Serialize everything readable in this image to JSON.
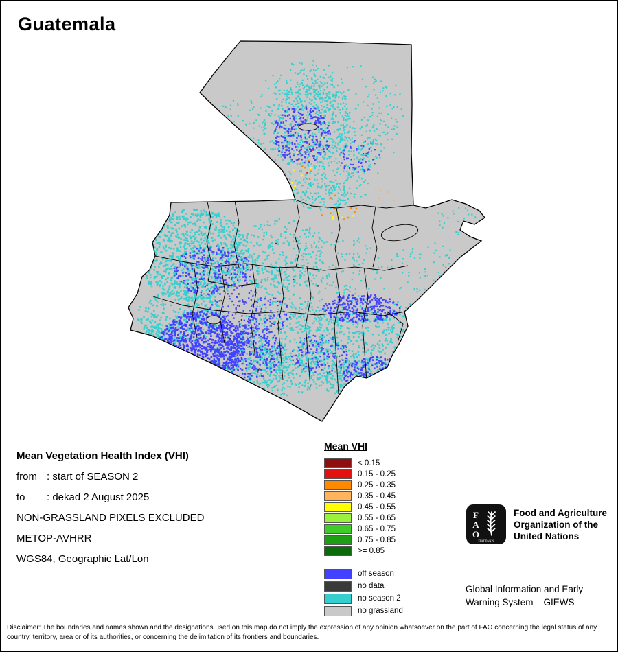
{
  "title": "Guatemala",
  "info": {
    "heading": "Mean Vegetation Health Index (VHI)",
    "rows": [
      {
        "label": "from",
        "value": ": start of SEASON 2"
      },
      {
        "label": "to",
        "value": ": dekad 2 August 2025"
      }
    ],
    "lines": [
      "NON-GRASSLAND PIXELS EXCLUDED",
      "METOP-AVHRR",
      "WGS84, Geographic Lat/Lon"
    ]
  },
  "legend": {
    "title": "Mean VHI",
    "vhi_classes": [
      {
        "label": "< 0.15",
        "color": "#8f0e0e"
      },
      {
        "label": "0.15 - 0.25",
        "color": "#e31010"
      },
      {
        "label": "0.25 - 0.35",
        "color": "#ff8a00"
      },
      {
        "label": "0.35 - 0.45",
        "color": "#ffb35c"
      },
      {
        "label": "0.45 - 0.55",
        "color": "#ffff00"
      },
      {
        "label": "0.55 - 0.65",
        "color": "#9bf23c"
      },
      {
        "label": "0.65 - 0.75",
        "color": "#3ecc28"
      },
      {
        "label": "0.75 - 0.85",
        "color": "#1e9e14"
      },
      {
        "label": ">= 0.85",
        "color": "#0b6b0b"
      }
    ],
    "categories": [
      {
        "label": "off season",
        "color": "#4141ff"
      },
      {
        "label": "no data",
        "color": "#3a3a3a"
      },
      {
        "label": "no season 2",
        "color": "#35cfcf"
      },
      {
        "label": "no grassland",
        "color": "#c9c9c9"
      }
    ]
  },
  "org": {
    "logo_text": "FAO",
    "logo_motto": "FIAT PANIS",
    "name_lines": [
      "Food and Agriculture",
      "Organization of the",
      "United Nations"
    ],
    "subtitle_lines": [
      "Global Information and Early",
      "Warning System – GIEWS"
    ]
  },
  "disclaimer": "Disclaimer: The boundaries and names shown and the designations used on this map do not imply the expression of any opinion whatsoever on the part of FAO concerning the legal status of any country, territory, area or of its authorities, or concerning the delimitation of its frontiers and boundaries."
}
